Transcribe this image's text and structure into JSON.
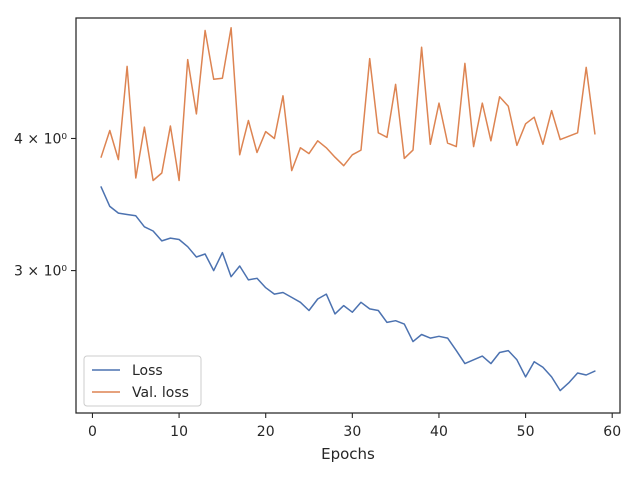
{
  "chart_data": {
    "type": "line",
    "title": "",
    "xlabel": "Epochs",
    "ylabel": "",
    "xscale": "linear",
    "yscale": "log",
    "xlim": [
      -1.9,
      60.9
    ],
    "ylim": [
      2.2,
      5.2
    ],
    "xticks": [
      0,
      10,
      20,
      30,
      40,
      50,
      60
    ],
    "xtick_labels": [
      "0",
      "10",
      "20",
      "30",
      "40",
      "50",
      "60"
    ],
    "yticks": [
      3,
      4
    ],
    "ytick_labels": [
      "3 × 10⁰",
      "4 × 10⁰"
    ],
    "grid": false,
    "legend_position": "lower-left",
    "colors": {
      "loss": "#4c72b0",
      "val_loss": "#dd8452"
    },
    "x": [
      1,
      2,
      3,
      4,
      5,
      6,
      7,
      8,
      9,
      10,
      11,
      12,
      13,
      14,
      15,
      16,
      17,
      18,
      19,
      20,
      21,
      22,
      23,
      24,
      25,
      26,
      27,
      28,
      29,
      30,
      31,
      32,
      33,
      34,
      35,
      36,
      37,
      38,
      39,
      40,
      41,
      42,
      43,
      44,
      45,
      46,
      47,
      48,
      49,
      50,
      51,
      52,
      53,
      54,
      55,
      56,
      57,
      58
    ],
    "series": [
      {
        "name": "Loss",
        "color": "#4c72b0",
        "values": [
          3.6,
          3.45,
          3.4,
          3.39,
          3.38,
          3.3,
          3.27,
          3.2,
          3.22,
          3.21,
          3.16,
          3.09,
          3.11,
          3.0,
          3.12,
          2.96,
          3.03,
          2.94,
          2.95,
          2.89,
          2.85,
          2.86,
          2.83,
          2.8,
          2.75,
          2.82,
          2.85,
          2.73,
          2.78,
          2.74,
          2.8,
          2.76,
          2.75,
          2.68,
          2.69,
          2.67,
          2.57,
          2.61,
          2.59,
          2.6,
          2.59,
          2.52,
          2.45,
          2.47,
          2.49,
          2.45,
          2.51,
          2.52,
          2.47,
          2.38,
          2.46,
          2.43,
          2.38,
          2.31,
          2.35,
          2.4,
          2.39,
          2.41
        ]
      },
      {
        "name": "Val. loss",
        "color": "#dd8452",
        "values": [
          3.84,
          4.07,
          3.82,
          4.68,
          3.67,
          4.1,
          3.65,
          3.71,
          4.11,
          3.65,
          4.75,
          4.22,
          5.06,
          4.55,
          4.56,
          5.09,
          3.86,
          4.16,
          3.88,
          4.06,
          4.0,
          4.39,
          3.73,
          3.92,
          3.87,
          3.98,
          3.92,
          3.84,
          3.77,
          3.86,
          3.9,
          4.76,
          4.05,
          4.01,
          4.5,
          3.83,
          3.9,
          4.88,
          3.95,
          4.32,
          3.96,
          3.93,
          4.71,
          3.93,
          4.32,
          3.98,
          4.38,
          4.29,
          3.94,
          4.13,
          4.19,
          3.95,
          4.25,
          3.99,
          4.02,
          4.05,
          4.67,
          4.04
        ]
      }
    ]
  }
}
